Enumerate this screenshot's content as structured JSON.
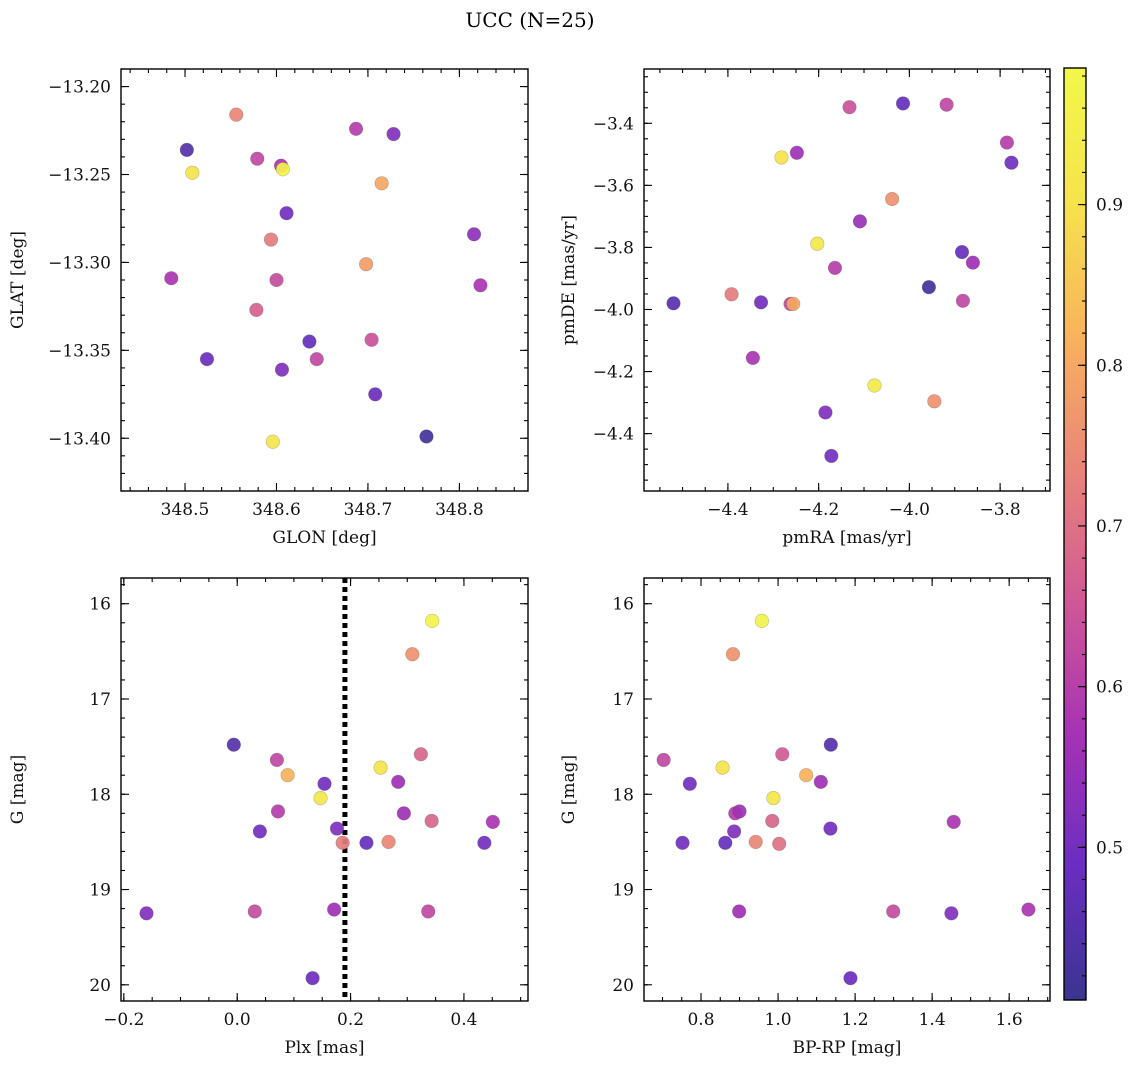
{
  "title": "UCC (N=25)",
  "colormap": {
    "name": "plasma",
    "min": 0.405,
    "max": 0.985,
    "ticks": [
      0.5,
      0.6,
      0.7,
      0.8,
      0.9
    ],
    "tick_labels": [
      "0.5",
      "0.6",
      "0.7",
      "0.8",
      "0.9"
    ],
    "stops": [
      "#3b3491",
      "#6a2ec0",
      "#a732b5",
      "#cf5996",
      "#e98578",
      "#f9b35c",
      "#f5e44c",
      "#f2f74a"
    ]
  },
  "chart_data": [
    {
      "type": "scatter",
      "xlabel": "GLON [deg]",
      "ylabel": "GLAT [deg]",
      "xlim": [
        348.43,
        348.875
      ],
      "ylim": [
        -13.43,
        -13.19
      ],
      "y_inverted": false,
      "xticks": [
        348.5,
        348.6,
        348.7,
        348.8
      ],
      "xtick_labels": [
        "348.5",
        "348.6",
        "348.7",
        "348.8"
      ],
      "xtick_minor_step": 0.02,
      "yticks": [
        -13.4,
        -13.35,
        -13.3,
        -13.25,
        -13.2
      ],
      "ytick_labels": [
        "−13.40",
        "−13.35",
        "−13.30",
        "−13.25",
        "−13.20"
      ],
      "ytick_minor_step": 0.01,
      "vline": null,
      "points": [
        {
          "x": 348.556,
          "y": -13.216,
          "c": 0.74
        },
        {
          "x": 348.502,
          "y": -13.236,
          "c": 0.45
        },
        {
          "x": 348.579,
          "y": -13.241,
          "c": 0.62
        },
        {
          "x": 348.605,
          "y": -13.245,
          "c": 0.58
        },
        {
          "x": 348.508,
          "y": -13.249,
          "c": 0.9
        },
        {
          "x": 348.607,
          "y": -13.247,
          "c": 0.97
        },
        {
          "x": 348.687,
          "y": -13.224,
          "c": 0.6
        },
        {
          "x": 348.728,
          "y": -13.227,
          "c": 0.52
        },
        {
          "x": 348.715,
          "y": -13.255,
          "c": 0.8
        },
        {
          "x": 348.611,
          "y": -13.272,
          "c": 0.5
        },
        {
          "x": 348.594,
          "y": -13.287,
          "c": 0.72
        },
        {
          "x": 348.698,
          "y": -13.301,
          "c": 0.78
        },
        {
          "x": 348.485,
          "y": -13.309,
          "c": 0.58
        },
        {
          "x": 348.6,
          "y": -13.31,
          "c": 0.63
        },
        {
          "x": 348.578,
          "y": -13.327,
          "c": 0.67
        },
        {
          "x": 348.816,
          "y": -13.284,
          "c": 0.54
        },
        {
          "x": 348.823,
          "y": -13.313,
          "c": 0.58
        },
        {
          "x": 348.524,
          "y": -13.355,
          "c": 0.49
        },
        {
          "x": 348.636,
          "y": -13.345,
          "c": 0.48
        },
        {
          "x": 348.644,
          "y": -13.355,
          "c": 0.62
        },
        {
          "x": 348.704,
          "y": -13.344,
          "c": 0.64
        },
        {
          "x": 348.606,
          "y": -13.361,
          "c": 0.52
        },
        {
          "x": 348.708,
          "y": -13.375,
          "c": 0.49
        },
        {
          "x": 348.596,
          "y": -13.402,
          "c": 0.91
        },
        {
          "x": 348.764,
          "y": -13.399,
          "c": 0.42
        }
      ]
    },
    {
      "type": "scatter",
      "xlabel": "pmRA [mas/yr]",
      "ylabel": "pmDE [mas/yr]",
      "xlim": [
        -4.585,
        -3.69
      ],
      "ylim": [
        -4.585,
        -3.225
      ],
      "y_inverted": false,
      "xticks": [
        -4.4,
        -4.2,
        -4.0,
        -3.8
      ],
      "xtick_labels": [
        "−4.4",
        "−4.2",
        "−4.0",
        "−3.8"
      ],
      "xtick_minor_step": 0.05,
      "yticks": [
        -4.4,
        -4.2,
        -4.0,
        -3.8,
        -3.6,
        -3.4
      ],
      "ytick_labels": [
        "−4.4",
        "−4.2",
        "−4.0",
        "−3.8",
        "−3.6",
        "−3.4"
      ],
      "ytick_minor_step": 0.05,
      "vline": null,
      "points": [
        {
          "x": -4.014,
          "y": -3.336,
          "c": 0.48
        },
        {
          "x": -3.918,
          "y": -3.34,
          "c": 0.62
        },
        {
          "x": -4.132,
          "y": -3.348,
          "c": 0.64
        },
        {
          "x": -3.785,
          "y": -3.462,
          "c": 0.6
        },
        {
          "x": -3.775,
          "y": -3.527,
          "c": 0.5
        },
        {
          "x": -4.248,
          "y": -3.495,
          "c": 0.56
        },
        {
          "x": -4.282,
          "y": -3.51,
          "c": 0.9
        },
        {
          "x": -4.038,
          "y": -3.644,
          "c": 0.76
        },
        {
          "x": -4.109,
          "y": -3.716,
          "c": 0.55
        },
        {
          "x": -4.203,
          "y": -3.788,
          "c": 0.92
        },
        {
          "x": -3.884,
          "y": -3.815,
          "c": 0.48
        },
        {
          "x": -3.86,
          "y": -3.849,
          "c": 0.56
        },
        {
          "x": -4.164,
          "y": -3.866,
          "c": 0.6
        },
        {
          "x": -3.957,
          "y": -3.928,
          "c": 0.42
        },
        {
          "x": -4.392,
          "y": -3.951,
          "c": 0.72
        },
        {
          "x": -3.882,
          "y": -3.972,
          "c": 0.62
        },
        {
          "x": -4.52,
          "y": -3.98,
          "c": 0.46
        },
        {
          "x": -4.327,
          "y": -3.977,
          "c": 0.5
        },
        {
          "x": -4.262,
          "y": -3.982,
          "c": 0.62
        },
        {
          "x": -4.256,
          "y": -3.982,
          "c": 0.8
        },
        {
          "x": -4.345,
          "y": -4.156,
          "c": 0.58
        },
        {
          "x": -4.077,
          "y": -4.245,
          "c": 0.93
        },
        {
          "x": -3.945,
          "y": -4.296,
          "c": 0.76
        },
        {
          "x": -4.185,
          "y": -4.332,
          "c": 0.52
        },
        {
          "x": -4.172,
          "y": -4.472,
          "c": 0.5
        }
      ]
    },
    {
      "type": "scatter",
      "xlabel": "Plx [mas]",
      "ylabel": "G [mag]",
      "xlim": [
        -0.205,
        0.513
      ],
      "ylim": [
        20.17,
        15.73
      ],
      "y_inverted": true,
      "xticks": [
        -0.2,
        0.0,
        0.2,
        0.4
      ],
      "xtick_labels": [
        "−0.2",
        "0.0",
        "0.2",
        "0.4"
      ],
      "xtick_minor_step": 0.05,
      "yticks": [
        16,
        17,
        18,
        19,
        20
      ],
      "ytick_labels": [
        "16",
        "17",
        "18",
        "19",
        "20"
      ],
      "ytick_minor_step": 0.2,
      "vline": {
        "x": 0.19,
        "style": "dotted"
      },
      "points": [
        {
          "x": 0.344,
          "y": 16.18,
          "c": 0.97
        },
        {
          "x": 0.309,
          "y": 16.53,
          "c": 0.76
        },
        {
          "x": -0.006,
          "y": 17.48,
          "c": 0.45
        },
        {
          "x": 0.07,
          "y": 17.64,
          "c": 0.62
        },
        {
          "x": 0.324,
          "y": 17.58,
          "c": 0.68
        },
        {
          "x": 0.089,
          "y": 17.8,
          "c": 0.82
        },
        {
          "x": 0.253,
          "y": 17.72,
          "c": 0.9
        },
        {
          "x": 0.154,
          "y": 17.89,
          "c": 0.5
        },
        {
          "x": 0.284,
          "y": 17.87,
          "c": 0.56
        },
        {
          "x": 0.147,
          "y": 18.04,
          "c": 0.92
        },
        {
          "x": 0.072,
          "y": 18.18,
          "c": 0.6
        },
        {
          "x": 0.294,
          "y": 18.2,
          "c": 0.56
        },
        {
          "x": 0.343,
          "y": 18.28,
          "c": 0.68
        },
        {
          "x": 0.451,
          "y": 18.29,
          "c": 0.58
        },
        {
          "x": 0.04,
          "y": 18.39,
          "c": 0.5
        },
        {
          "x": 0.176,
          "y": 18.36,
          "c": 0.52
        },
        {
          "x": 0.186,
          "y": 18.51,
          "c": 0.72
        },
        {
          "x": 0.228,
          "y": 18.51,
          "c": 0.48
        },
        {
          "x": 0.267,
          "y": 18.5,
          "c": 0.74
        },
        {
          "x": 0.436,
          "y": 18.51,
          "c": 0.5
        },
        {
          "x": -0.16,
          "y": 19.25,
          "c": 0.52
        },
        {
          "x": 0.031,
          "y": 19.23,
          "c": 0.63
        },
        {
          "x": 0.171,
          "y": 19.21,
          "c": 0.56
        },
        {
          "x": 0.337,
          "y": 19.23,
          "c": 0.62
        },
        {
          "x": 0.133,
          "y": 19.93,
          "c": 0.49
        }
      ]
    },
    {
      "type": "scatter",
      "xlabel": "BP-RP [mag]",
      "ylabel": "G [mag]",
      "xlim": [
        0.652,
        1.706
      ],
      "ylim": [
        20.17,
        15.73
      ],
      "y_inverted": true,
      "xticks": [
        0.8,
        1.0,
        1.2,
        1.4,
        1.6
      ],
      "xtick_labels": [
        "0.8",
        "1.0",
        "1.2",
        "1.4",
        "1.6"
      ],
      "xtick_minor_step": 0.05,
      "yticks": [
        16,
        17,
        18,
        19,
        20
      ],
      "ytick_labels": [
        "16",
        "17",
        "18",
        "19",
        "20"
      ],
      "ytick_minor_step": 0.2,
      "vline": null,
      "points": [
        {
          "x": 0.958,
          "y": 16.18,
          "c": 0.97
        },
        {
          "x": 0.883,
          "y": 16.53,
          "c": 0.76
        },
        {
          "x": 0.703,
          "y": 17.64,
          "c": 0.62
        },
        {
          "x": 1.137,
          "y": 17.48,
          "c": 0.45
        },
        {
          "x": 1.011,
          "y": 17.58,
          "c": 0.66
        },
        {
          "x": 0.856,
          "y": 17.72,
          "c": 0.9
        },
        {
          "x": 1.073,
          "y": 17.8,
          "c": 0.82
        },
        {
          "x": 0.771,
          "y": 17.89,
          "c": 0.5
        },
        {
          "x": 1.111,
          "y": 17.87,
          "c": 0.56
        },
        {
          "x": 0.988,
          "y": 18.04,
          "c": 0.92
        },
        {
          "x": 0.889,
          "y": 18.2,
          "c": 0.6
        },
        {
          "x": 0.9,
          "y": 18.18,
          "c": 0.56
        },
        {
          "x": 0.985,
          "y": 18.28,
          "c": 0.68
        },
        {
          "x": 1.456,
          "y": 18.29,
          "c": 0.58
        },
        {
          "x": 0.886,
          "y": 18.39,
          "c": 0.52
        },
        {
          "x": 1.136,
          "y": 18.36,
          "c": 0.5
        },
        {
          "x": 0.752,
          "y": 18.51,
          "c": 0.5
        },
        {
          "x": 0.863,
          "y": 18.51,
          "c": 0.48
        },
        {
          "x": 0.942,
          "y": 18.5,
          "c": 0.74
        },
        {
          "x": 1.003,
          "y": 18.52,
          "c": 0.7
        },
        {
          "x": 0.899,
          "y": 19.23,
          "c": 0.56
        },
        {
          "x": 1.299,
          "y": 19.23,
          "c": 0.63
        },
        {
          "x": 1.45,
          "y": 19.25,
          "c": 0.52
        },
        {
          "x": 1.65,
          "y": 19.21,
          "c": 0.58
        },
        {
          "x": 1.188,
          "y": 19.93,
          "c": 0.49
        }
      ]
    }
  ]
}
